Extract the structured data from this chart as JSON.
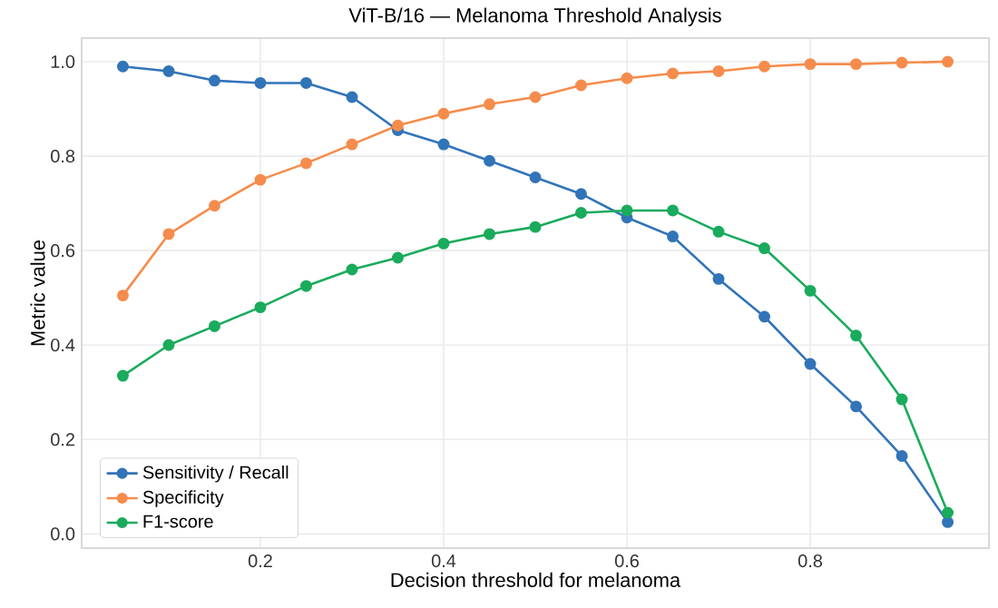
{
  "chart_data": {
    "type": "line",
    "title": "ViT-B/16 — Melanoma Threshold Analysis",
    "xlabel": "Decision threshold for melanoma",
    "ylabel": "Metric value",
    "x": [
      0.05,
      0.1,
      0.15,
      0.2,
      0.25,
      0.3,
      0.35,
      0.4,
      0.45,
      0.5,
      0.55,
      0.6,
      0.65,
      0.7,
      0.75,
      0.8,
      0.85,
      0.9,
      0.95
    ],
    "series": [
      {
        "name": "Sensitivity / Recall",
        "color": "#3274b8",
        "values": [
          0.99,
          0.98,
          0.96,
          0.955,
          0.955,
          0.925,
          0.855,
          0.825,
          0.79,
          0.755,
          0.72,
          0.67,
          0.63,
          0.54,
          0.46,
          0.36,
          0.27,
          0.165,
          0.025
        ]
      },
      {
        "name": "Specificity",
        "color": "#f58c4c",
        "values": [
          0.505,
          0.635,
          0.695,
          0.75,
          0.785,
          0.825,
          0.865,
          0.89,
          0.91,
          0.925,
          0.95,
          0.965,
          0.975,
          0.98,
          0.99,
          0.995,
          0.995,
          0.998,
          1.0
        ]
      },
      {
        "name": "F1-score",
        "color": "#1aab5c",
        "values": [
          0.335,
          0.4,
          0.44,
          0.48,
          0.525,
          0.56,
          0.585,
          0.615,
          0.635,
          0.65,
          0.68,
          0.685,
          0.685,
          0.64,
          0.605,
          0.515,
          0.42,
          0.285,
          0.045
        ]
      }
    ],
    "xlim": [
      0.005,
      0.995
    ],
    "ylim": [
      -0.03,
      1.05
    ],
    "xticks": [
      0.2,
      0.4,
      0.6,
      0.8
    ],
    "yticks": [
      {
        "value": 0,
        "label": "0.0"
      },
      0.2,
      0.4,
      0.6,
      0.8,
      {
        "value": 1,
        "label": "1.0"
      }
    ],
    "grid": true,
    "legend": "bottom left",
    "marker": "circle",
    "line_style": "solid"
  }
}
